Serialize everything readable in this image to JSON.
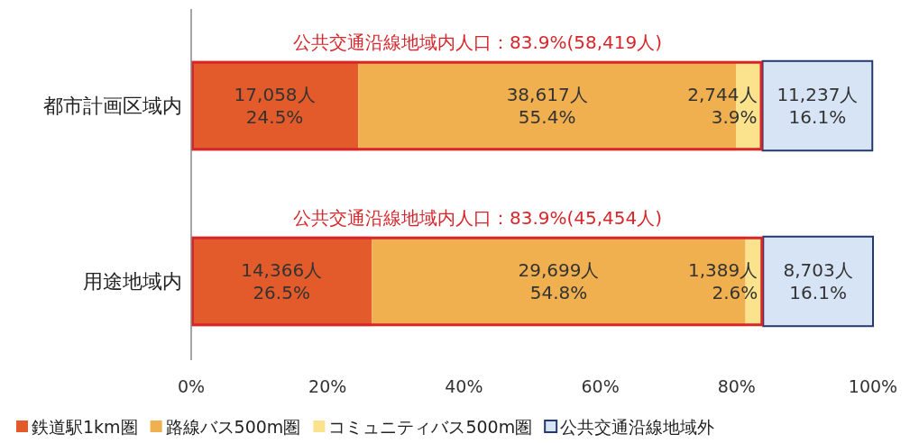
{
  "chart_data": {
    "type": "bar",
    "orientation": "horizontal",
    "stacked": true,
    "categories": [
      "都市計画区域内",
      "用途地域内"
    ],
    "series": [
      {
        "name": "鉄道駅1km圏",
        "color": "#e35b2a",
        "values": [
          24.5,
          26.5
        ],
        "value_labels": [
          "17,058人\n24.5%",
          "14,366人\n26.5%"
        ]
      },
      {
        "name": "路線バス500m圏",
        "color": "#f0b050",
        "values": [
          55.4,
          54.8
        ],
        "value_labels": [
          "38,617人\n55.4%",
          "29,699人\n54.8%"
        ]
      },
      {
        "name": "コミュニティバス500m圏",
        "color": "#fae38c",
        "values": [
          3.9,
          2.6
        ],
        "value_labels": [
          "2,744人\n3.9%",
          "1,389人\n2.6%"
        ]
      },
      {
        "name": "公共交通沿線地域外",
        "color": "#d6e4f5",
        "values": [
          16.1,
          16.1
        ],
        "value_labels": [
          "11,237人\n16.1%",
          "8,703人\n16.1%"
        ]
      }
    ],
    "xlim": [
      0,
      100
    ],
    "xticks": [
      {
        "value": 0,
        "label": "0%"
      },
      {
        "value": 20,
        "label": "20%"
      },
      {
        "value": 40,
        "label": "40%"
      },
      {
        "value": 60,
        "label": "60%"
      },
      {
        "value": 80,
        "label": "80%"
      },
      {
        "value": 100,
        "label": "100%"
      }
    ],
    "legend": "bottom",
    "annotations": [
      "公共交通沿線地域内人口：83.9%(58,419人)",
      "公共交通沿線地域内人口：83.9%(45,454人)"
    ]
  }
}
